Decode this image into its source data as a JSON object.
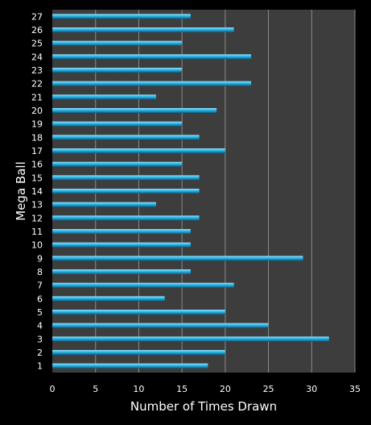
{
  "chart_data": {
    "type": "bar",
    "orientation": "horizontal",
    "title": "",
    "xlabel": "Number of Times Drawn",
    "ylabel": "Mega Ball",
    "categories": [
      "1",
      "2",
      "3",
      "4",
      "5",
      "6",
      "7",
      "8",
      "9",
      "10",
      "11",
      "12",
      "13",
      "14",
      "15",
      "16",
      "17",
      "18",
      "19",
      "20",
      "21",
      "22",
      "23",
      "24",
      "25",
      "26",
      "27"
    ],
    "values": [
      18,
      20,
      32,
      25,
      20,
      13,
      21,
      16,
      29,
      16,
      16,
      17,
      12,
      17,
      17,
      15,
      20,
      17,
      15,
      19,
      12,
      23,
      15,
      23,
      15,
      21,
      16
    ],
    "xlim": [
      0,
      35
    ],
    "xticks": [
      0,
      5,
      10,
      15,
      20,
      25,
      30,
      35
    ],
    "grid": true,
    "legend": "none",
    "colors": {
      "background": "#000000",
      "plot_area": "#3d3d3d",
      "grid": "#8a8a8a",
      "bar": "#29b5e8",
      "bar_highlight": "#8fe3ff",
      "bar_shadow": "#0a5f82",
      "text": "#ffffff"
    }
  }
}
